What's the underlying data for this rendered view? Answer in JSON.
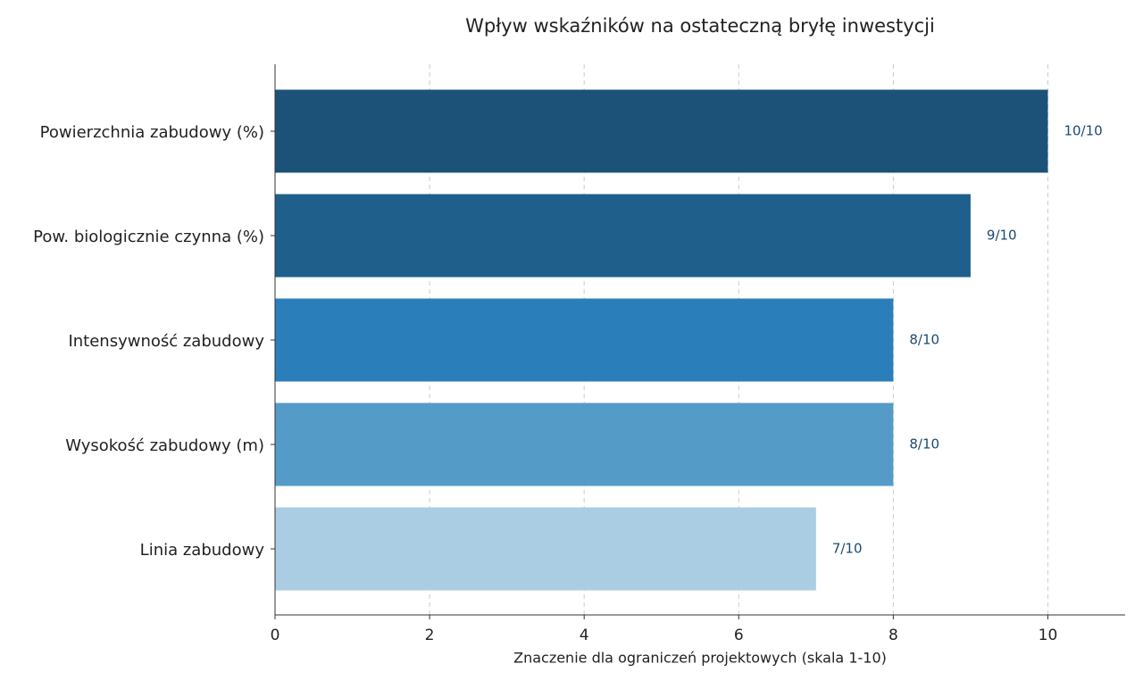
{
  "chart_data": {
    "type": "bar",
    "orientation": "horizontal",
    "title": "Wpływ wskaźników na ostateczną bryłę inwestycji",
    "x_label": "Znaczenie dla ograniczeń projektowych (skala 1-10)",
    "categories": [
      "Powierzchnia zabudowy (%)",
      "Pow. biologicznie czynna (%)",
      "Intensywność zabudowy",
      "Wysokość zabudowy (m)",
      "Linia zabudowy"
    ],
    "values": [
      10,
      9,
      8,
      8,
      7
    ],
    "value_labels": [
      "10/10",
      "9/10",
      "8/10",
      "8/10",
      "7/10"
    ],
    "colors": [
      "#1c5178",
      "#1f5f8b",
      "#2a7fba",
      "#559bc8",
      "#abcde3"
    ],
    "xlim": [
      0,
      11
    ],
    "xticks": [
      0,
      2,
      4,
      6,
      8,
      10
    ],
    "grid": true
  }
}
